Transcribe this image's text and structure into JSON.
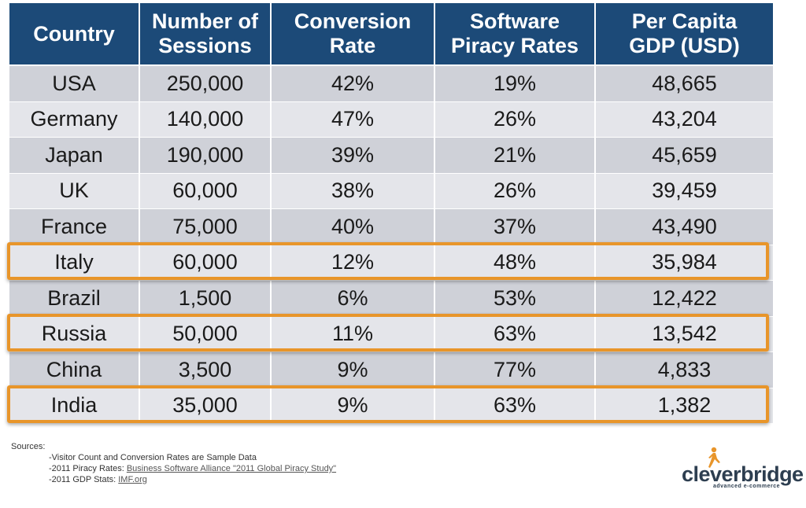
{
  "table": {
    "headers": [
      "Country",
      "Number of\nSessions",
      "Conversion\nRate",
      "Software\nPiracy Rates",
      "Per Capita\nGDP (USD)"
    ],
    "rows": [
      [
        "USA",
        "250,000",
        "42%",
        "19%",
        "48,665"
      ],
      [
        "Germany",
        "140,000",
        "47%",
        "26%",
        "43,204"
      ],
      [
        "Japan",
        "190,000",
        "39%",
        "21%",
        "45,659"
      ],
      [
        "UK",
        "60,000",
        "38%",
        "26%",
        "39,459"
      ],
      [
        "France",
        "75,000",
        "40%",
        "37%",
        "43,490"
      ],
      [
        "Italy",
        "60,000",
        "12%",
        "48%",
        "35,984"
      ],
      [
        "Brazil",
        "1,500",
        "6%",
        "53%",
        "12,422"
      ],
      [
        "Russia",
        "50,000",
        "11%",
        "63%",
        "13,542"
      ],
      [
        "China",
        "3,500",
        "9%",
        "77%",
        "4,833"
      ],
      [
        "India",
        "35,000",
        "9%",
        "63%",
        "1,382"
      ]
    ],
    "highlighted_rows": [
      "Italy",
      "Russia",
      "India"
    ]
  },
  "sources": {
    "title": "Sources:",
    "line1": "-Visitor Count and Conversion Rates are Sample Data",
    "line2_prefix": "-2011 Piracy Rates: ",
    "line2_link": "Business Software Alliance \"2011 Global Piracy Study\"",
    "line3_prefix": "-2011 GDP Stats: ",
    "line3_link": "IMF.org"
  },
  "logo": {
    "name": "cleverbridge",
    "tagline": "advanced e-commerce"
  },
  "colors": {
    "header_bg": "#1c4a78",
    "row_dark": "#cfd1d8",
    "row_light": "#e4e5ea",
    "highlight_border": "#e8952a",
    "logo_accent": "#e8952a"
  }
}
